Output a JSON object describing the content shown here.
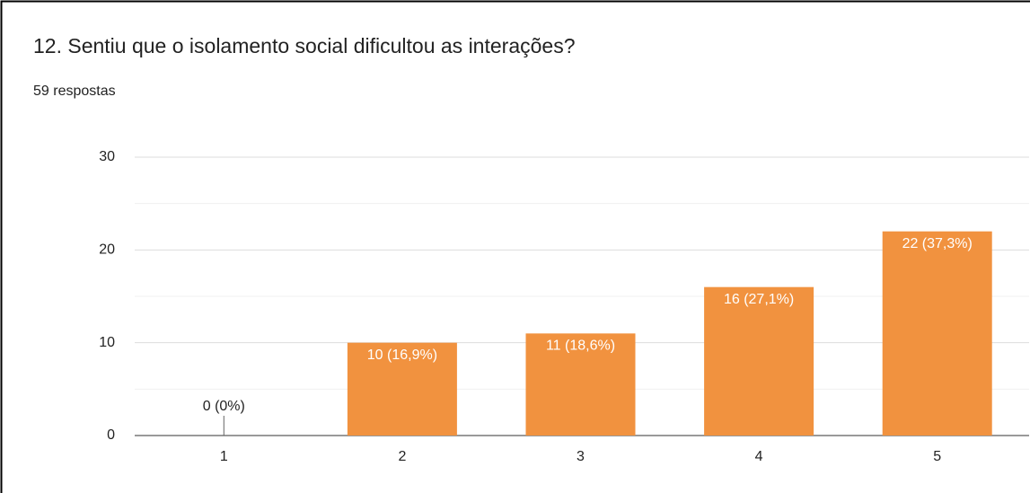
{
  "chart_data": {
    "type": "bar",
    "title": "12. Sentiu que o isolamento social dificultou as interações?",
    "subtitle": "59 respostas",
    "categories": [
      "1",
      "2",
      "3",
      "4",
      "5"
    ],
    "values": [
      0,
      10,
      11,
      16,
      22
    ],
    "value_labels": [
      "0 (0%)",
      "10 (16,9%)",
      "11 (18,6%)",
      "16 (27,1%)",
      "22 (37,3%)"
    ],
    "color": "#f1923f",
    "ylim": [
      0,
      30
    ],
    "yticks": [
      0,
      10,
      20,
      30
    ],
    "minor_yticks": [
      5,
      15,
      25
    ],
    "grid": true
  }
}
